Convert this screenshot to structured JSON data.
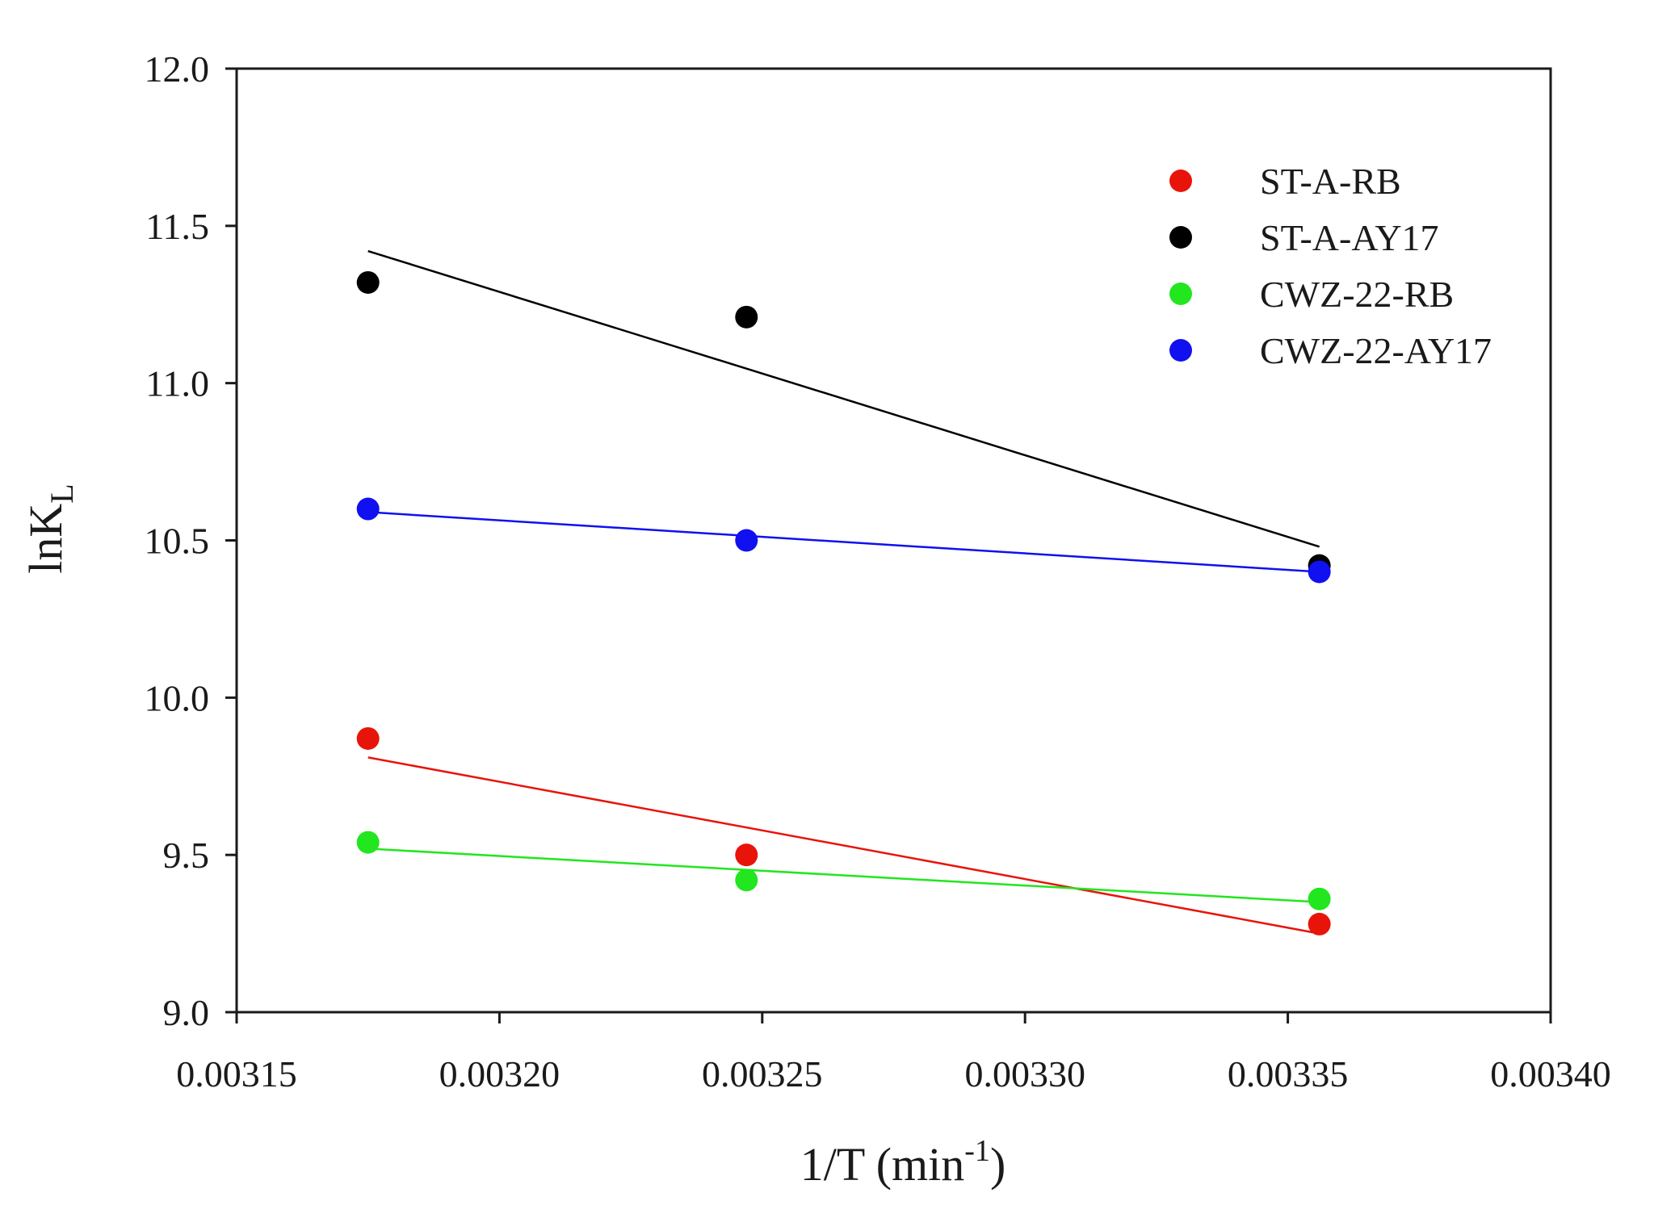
{
  "chart_data": {
    "type": "scatter",
    "xlabel": {
      "main": "1/T (min",
      "sup": "-1",
      "tail": ")"
    },
    "ylabel": {
      "main": "lnK",
      "sub": "L"
    },
    "xlim": [
      0.00315,
      0.0034
    ],
    "ylim": [
      9.0,
      12.0
    ],
    "xticks": [
      "0.00315",
      "0.00320",
      "0.00325",
      "0.00330",
      "0.00335",
      "0.00340"
    ],
    "yticks": [
      "9.0",
      "9.5",
      "10.0",
      "10.5",
      "11.0",
      "11.5",
      "12.0"
    ],
    "grid": false,
    "legend_position": "top-right",
    "series": [
      {
        "name": "ST-A-RB",
        "color": "#e8140a",
        "x": [
          0.003175,
          0.003247,
          0.003356
        ],
        "y": [
          9.87,
          9.5,
          9.28
        ],
        "fit": {
          "x": [
            0.003175,
            0.003356
          ],
          "y": [
            9.81,
            9.25
          ]
        }
      },
      {
        "name": "ST-A-AY17",
        "color": "#000000",
        "x": [
          0.003175,
          0.003247,
          0.003356
        ],
        "y": [
          11.32,
          11.21,
          10.42
        ],
        "fit": {
          "x": [
            0.003175,
            0.003356
          ],
          "y": [
            11.42,
            10.48
          ]
        }
      },
      {
        "name": "CWZ-22-RB",
        "color": "#22e61e",
        "x": [
          0.003175,
          0.003247,
          0.003356
        ],
        "y": [
          9.54,
          9.42,
          9.36
        ],
        "fit": {
          "x": [
            0.003175,
            0.003356
          ],
          "y": [
            9.52,
            9.35
          ]
        }
      },
      {
        "name": "CWZ-22-AY17",
        "color": "#1010f0",
        "x": [
          0.003175,
          0.003247,
          0.003356
        ],
        "y": [
          10.6,
          10.5,
          10.4
        ],
        "fit": {
          "x": [
            0.003175,
            0.003356
          ],
          "y": [
            10.59,
            10.4
          ]
        }
      }
    ]
  }
}
